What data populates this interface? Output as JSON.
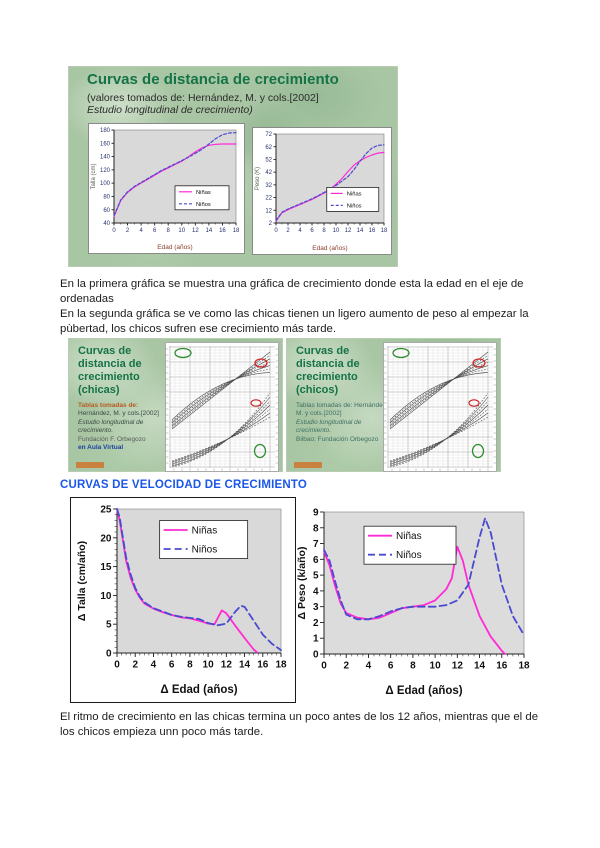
{
  "page": {
    "top_slide": {
      "title": "Curvas de distancia de crecimiento",
      "subtitle_line1": "(valores tomados de: Hernández, M. y cols.[2002]",
      "subtitle_line2": "Estudio longitudinal de crecimiento)"
    },
    "paragraphs": {
      "p1": "En la primera gráfica se muestra una gráfica de crecimiento donde esta la edad en el eje de ordenadas",
      "p2": "En la segunda gráfica se ve como las chicas tienen un ligero aumento de peso al empezar la pùbertad, los chicos sufren ese crecimiento más tarde."
    },
    "slide_chicas": {
      "title": "Curvas de distancia de crecimiento (chicas)",
      "credit_lead": "Tablas tomadas de:",
      "credit_line1": "Hernández, M. y cols.[2002]",
      "credit_line2": "Estudio longitudinal de crecimiento.",
      "credit_line3": "Fundación F. Orbegozo",
      "credit_line4": "en Aula Virtual"
    },
    "slide_chicos": {
      "title": "Curvas de distancia de crecimiento (chicos)",
      "credit_line1": "Tablas tomadas de: Hernández, M. y cols.[2002]",
      "credit_line2": "Estudio longitudinal de crecimiento.",
      "credit_line3": "Bilbao: Fundación Orbegozo"
    },
    "velocity_heading": "CURVAS DE VELOCIDAD DE CRECIMIENTO",
    "bottom_paragraph": "El ritmo de crecimiento en las chicas termina un poco antes de los 12 años, mientras que el de los chicos empieza unn poco más tarde."
  },
  "colors": {
    "slide_background_green": "#a9c6a4",
    "slide_title_green": "#157347",
    "heading_blue": "#1a56e8",
    "girls_line_pink": "#ff2ad4",
    "boys_line_blue": "#4a4ad0",
    "plot_background_gray": "#d9d9d9",
    "annotation_green": "#2e8b2e",
    "annotation_red": "#cc2222"
  },
  "chart_data": [
    {
      "type": "line",
      "title": "",
      "xlabel": "Edad (años)",
      "ylabel": "Talla (cm)",
      "xlim": [
        0,
        18
      ],
      "ylim": [
        40,
        180
      ],
      "xticks": [
        0,
        2,
        4,
        6,
        8,
        10,
        12,
        14,
        16,
        18
      ],
      "yticks": [
        40,
        60,
        80,
        100,
        120,
        140,
        160,
        180
      ],
      "grid": false,
      "legend_position": "inside-bottom-right",
      "plot_bg": "#d9d9d9",
      "series": [
        {
          "name": "Niñas",
          "color": "#ff2ad4",
          "dash": "solid",
          "x": [
            0,
            0.5,
            1,
            2,
            3,
            4,
            5,
            6,
            7,
            8,
            9,
            10,
            11,
            12,
            13,
            14,
            15,
            16,
            17,
            18
          ],
          "y": [
            50,
            62,
            74,
            86,
            94,
            100,
            106,
            112,
            118,
            123,
            128,
            133,
            140,
            147,
            153,
            157,
            158.5,
            159,
            159,
            159
          ]
        },
        {
          "name": "Niños",
          "color": "#4a4ad0",
          "dash": "dashed",
          "x": [
            0,
            0.5,
            1,
            2,
            3,
            4,
            5,
            6,
            7,
            8,
            9,
            10,
            11,
            12,
            13,
            14,
            15,
            16,
            17,
            18
          ],
          "y": [
            51,
            63,
            75,
            87,
            95,
            101,
            107,
            113,
            119,
            124,
            129,
            134,
            139,
            145,
            151,
            159,
            167,
            173,
            175.5,
            176
          ]
        }
      ]
    },
    {
      "type": "line",
      "title": "",
      "xlabel": "Edad (años)",
      "ylabel": "Peso (K)",
      "xlim": [
        0,
        18
      ],
      "ylim": [
        2,
        72
      ],
      "xticks": [
        0,
        2,
        4,
        6,
        8,
        10,
        12,
        14,
        16,
        18
      ],
      "yticks": [
        2,
        12,
        22,
        32,
        42,
        52,
        62,
        72
      ],
      "grid": false,
      "legend_position": "inside-bottom-right",
      "plot_bg": "#d9d9d9",
      "series": [
        {
          "name": "Niñas",
          "color": "#ff2ad4",
          "dash": "solid",
          "x": [
            0,
            1,
            2,
            3,
            4,
            5,
            6,
            7,
            8,
            9,
            10,
            11,
            12,
            13,
            14,
            15,
            16,
            17,
            18
          ],
          "y": [
            3.5,
            10,
            12.5,
            14.5,
            16.5,
            18.5,
            20.5,
            23,
            25.5,
            28.5,
            32.5,
            37,
            42.5,
            47.5,
            51,
            53.5,
            55.5,
            57,
            57.5
          ]
        },
        {
          "name": "Niños",
          "color": "#4a4ad0",
          "dash": "dashed",
          "x": [
            0,
            1,
            2,
            3,
            4,
            5,
            6,
            7,
            8,
            9,
            10,
            11,
            12,
            13,
            14,
            15,
            16,
            17,
            18
          ],
          "y": [
            4,
            10.5,
            13,
            15,
            17,
            19,
            21,
            23.5,
            26,
            28.5,
            31.5,
            35,
            38.5,
            44,
            50.5,
            56.5,
            61,
            63,
            63.5
          ]
        }
      ]
    },
    {
      "type": "line",
      "title": "",
      "xlabel": "Δ Edad (años)",
      "ylabel": "Δ Talla (cm/año)",
      "xlim": [
        0,
        18
      ],
      "ylim": [
        0,
        25
      ],
      "xticks": [
        0,
        2,
        4,
        6,
        8,
        10,
        12,
        14,
        16,
        18
      ],
      "yticks": [
        0,
        5,
        10,
        15,
        20,
        25
      ],
      "grid": false,
      "legend_position": "inside-top-center",
      "plot_bg": "#d9d9d9",
      "series": [
        {
          "name": "Niñas",
          "color": "#ff2ad4",
          "dash": "solid",
          "x": [
            0,
            0.3,
            0.7,
            1,
            1.5,
            2,
            2.5,
            3,
            4,
            5,
            6,
            7,
            8,
            9,
            10,
            10.7,
            11.5,
            12,
            13,
            14,
            15,
            15.4
          ],
          "y": [
            25,
            23,
            19,
            16,
            13,
            11,
            9.6,
            8.6,
            7.7,
            7.1,
            6.6,
            6.2,
            6.0,
            5.6,
            5.1,
            5.0,
            7.4,
            6.9,
            4.7,
            2.6,
            0.6,
            0.1
          ]
        },
        {
          "name": "Niños",
          "color": "#4a4ad0",
          "dash": "dashed",
          "x": [
            0,
            0.3,
            0.7,
            1,
            1.5,
            2,
            2.5,
            3,
            4,
            5,
            6,
            7,
            8,
            9,
            10,
            11,
            12,
            13,
            13.6,
            14,
            15,
            16,
            17,
            18
          ],
          "y": [
            25,
            23.5,
            19.5,
            16.6,
            13.6,
            11.3,
            9.8,
            8.8,
            7.8,
            7.2,
            6.6,
            6.3,
            6.1,
            5.9,
            5.2,
            4.8,
            5.1,
            7.2,
            8.2,
            8.0,
            5.6,
            3.2,
            1.6,
            0.5
          ]
        }
      ]
    },
    {
      "type": "line",
      "title": "",
      "xlabel": "Δ Edad (años)",
      "ylabel": "Δ Peso (k/año)",
      "xlim": [
        0,
        18
      ],
      "ylim": [
        0,
        9
      ],
      "xticks": [
        0,
        2,
        4,
        6,
        8,
        10,
        12,
        14,
        16,
        18
      ],
      "yticks": [
        0,
        1,
        2,
        3,
        4,
        5,
        6,
        7,
        8,
        9
      ],
      "grid": false,
      "legend_position": "inside-top-left",
      "plot_bg": "#dcdcdc",
      "series": [
        {
          "name": "Niñas",
          "color": "#ff2ad4",
          "dash": "solid",
          "x": [
            0,
            0.5,
            1,
            1.5,
            2,
            3,
            4,
            5,
            6,
            7,
            8,
            9,
            10,
            11,
            11.5,
            12,
            12.5,
            13,
            14,
            15,
            16,
            16.3
          ],
          "y": [
            6.5,
            5.6,
            4.3,
            3.2,
            2.6,
            2.3,
            2.2,
            2.3,
            2.6,
            2.9,
            3.0,
            3.1,
            3.4,
            4.1,
            4.8,
            6.8,
            5.9,
            4.4,
            2.4,
            1.1,
            0.2,
            0.0
          ]
        },
        {
          "name": "Niños",
          "color": "#4a4ad0",
          "dash": "dashed",
          "x": [
            0,
            0.5,
            1,
            1.5,
            2,
            3,
            4,
            5,
            6,
            7,
            8,
            9,
            10,
            11,
            12,
            13,
            14,
            14.5,
            15,
            16,
            17,
            18
          ],
          "y": [
            6.6,
            5.9,
            4.6,
            3.4,
            2.5,
            2.2,
            2.2,
            2.4,
            2.7,
            2.9,
            3.0,
            3.0,
            3.0,
            3.1,
            3.4,
            4.4,
            7.4,
            8.6,
            7.7,
            4.4,
            2.4,
            1.2
          ]
        }
      ]
    }
  ]
}
